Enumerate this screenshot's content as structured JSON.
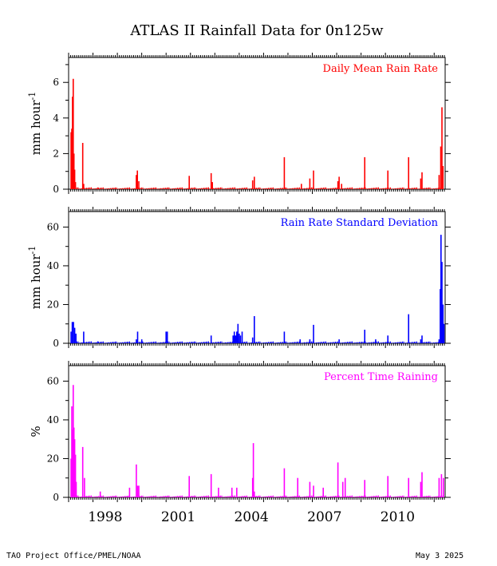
{
  "title": "ATLAS II Rainfall Data for 0n125w",
  "footer": {
    "left": "TAO Project Office/PMEL/NOAA",
    "right": "May  3 2025"
  },
  "x_axis": {
    "tick_labels": [
      "1998",
      "2001",
      "2004",
      "2007",
      "2010"
    ],
    "range_years": [
      1997.0,
      2012.45
    ]
  },
  "chart_data": [
    {
      "type": "bar",
      "legend": "Daily Mean Rain Rate",
      "color": "#ff0000",
      "ylabel_main": "mm hour",
      "ylabel_sup": "-1",
      "ylim": [
        0,
        7.4
      ],
      "yticks": [
        0,
        2,
        4,
        6
      ],
      "x": [
        1997.1,
        1997.13,
        1997.16,
        1997.19,
        1997.22,
        1997.25,
        1997.28,
        1997.58,
        1997.62,
        1998.2,
        1999.78,
        1999.82,
        1999.88,
        2001.95,
        2002.85,
        2002.9,
        2004.55,
        2004.62,
        2005.85,
        2006.55,
        2006.9,
        2007.05,
        2008.05,
        2008.1,
        2008.2,
        2009.15,
        2010.1,
        2010.95,
        2011.45,
        2011.5,
        2012.2,
        2012.27,
        2012.32,
        2012.36
      ],
      "y": [
        3.2,
        3.4,
        5.2,
        6.2,
        2.0,
        1.1,
        0.4,
        2.6,
        0.3,
        0.1,
        0.8,
        1.05,
        0.45,
        0.75,
        0.9,
        0.4,
        0.5,
        0.7,
        1.8,
        0.3,
        0.6,
        1.05,
        0.45,
        0.7,
        0.3,
        1.8,
        1.05,
        1.8,
        0.6,
        0.95,
        0.8,
        2.4,
        4.6,
        1.3
      ]
    },
    {
      "type": "bar",
      "legend": "Rain Rate Standard Deviation",
      "color": "#0000ff",
      "ylabel_main": "mm hour",
      "ylabel_sup": "-1",
      "ylim": [
        0,
        68
      ],
      "yticks": [
        0,
        20,
        40,
        60
      ],
      "x": [
        1997.1,
        1997.15,
        1997.2,
        1997.25,
        1997.3,
        1997.62,
        1998.2,
        1999.78,
        1999.83,
        2000.0,
        2001.0,
        2001.05,
        2002.85,
        2003.75,
        2003.8,
        2003.85,
        2003.9,
        2003.95,
        2004.0,
        2004.05,
        2004.12,
        2004.55,
        2004.62,
        2005.85,
        2006.5,
        2006.9,
        2007.05,
        2008.1,
        2009.15,
        2009.6,
        2010.1,
        2010.95,
        2011.45,
        2011.5,
        2012.2,
        2012.25,
        2012.28,
        2012.32,
        2012.36,
        2012.4
      ],
      "y": [
        6,
        11,
        11,
        8,
        5,
        6,
        1,
        2,
        6,
        2,
        6,
        6,
        4,
        4,
        6,
        4,
        6,
        10,
        5,
        4,
        6,
        3,
        14,
        6,
        2,
        2,
        9.5,
        2,
        7,
        2,
        4,
        15,
        2,
        4,
        2,
        28,
        56,
        42,
        20,
        10
      ]
    },
    {
      "type": "bar",
      "legend": "Percent Time Raining",
      "color": "#ff00ff",
      "ylabel_main": "%",
      "ylabel_sup": "",
      "ylim": [
        0,
        68
      ],
      "yticks": [
        0,
        20,
        40,
        60
      ],
      "x": [
        1997.1,
        1997.13,
        1997.16,
        1997.19,
        1997.22,
        1997.25,
        1997.28,
        1997.31,
        1997.58,
        1997.65,
        1998.3,
        1999.5,
        1999.78,
        1999.83,
        1999.88,
        2001.95,
        2002.85,
        2003.15,
        2003.7,
        2003.9,
        2004.55,
        2004.58,
        2004.62,
        2005.85,
        2006.4,
        2006.9,
        2007.05,
        2007.45,
        2008.05,
        2008.25,
        2008.35,
        2009.15,
        2010.1,
        2010.95,
        2011.45,
        2011.5,
        2012.2,
        2012.3,
        2012.38
      ],
      "y": [
        20,
        47,
        35,
        58,
        36,
        30,
        22,
        8,
        26,
        10,
        3,
        5,
        17,
        6,
        6,
        11,
        12,
        5,
        5,
        5,
        10,
        28,
        3,
        15,
        10,
        8,
        6,
        5,
        18,
        8,
        10,
        9,
        11,
        10,
        8,
        13,
        10,
        12,
        10
      ]
    }
  ]
}
